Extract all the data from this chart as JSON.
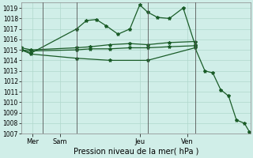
{
  "xlabel": "Pression niveau de la mer( hPa )",
  "ylim": [
    1007,
    1019.5
  ],
  "xlim": [
    0,
    11.6
  ],
  "bg_color": "#d0eee8",
  "grid_color": "#b0d8cc",
  "line_color": "#1a5c28",
  "yticks": [
    1007,
    1008,
    1009,
    1010,
    1011,
    1012,
    1013,
    1014,
    1015,
    1016,
    1017,
    1018,
    1019
  ],
  "vlines": [
    1.1,
    2.8,
    6.4,
    8.8
  ],
  "xtick_pos": [
    0.55,
    1.95,
    6.0,
    8.4
  ],
  "xtick_labels": [
    "Mer",
    "Sam",
    "Jeu",
    "Ven"
  ],
  "series1_x": [
    0.0,
    0.5,
    2.8,
    3.3,
    3.8,
    4.3,
    4.9,
    5.5,
    6.0,
    6.4,
    6.9,
    7.5,
    8.2,
    8.8
  ],
  "series1_y": [
    1015.0,
    1014.7,
    1017.0,
    1017.8,
    1017.9,
    1017.3,
    1016.5,
    1017.0,
    1019.3,
    1018.6,
    1018.1,
    1018.0,
    1019.0,
    1015.5
  ],
  "series2_x": [
    0.0,
    0.5,
    2.8,
    3.5,
    4.5,
    5.5,
    6.4,
    7.5,
    8.8
  ],
  "series2_y": [
    1015.2,
    1015.0,
    1015.2,
    1015.3,
    1015.5,
    1015.6,
    1015.5,
    1015.7,
    1015.8
  ],
  "series3_x": [
    0.0,
    0.5,
    2.8,
    3.5,
    4.5,
    5.5,
    6.4,
    7.5,
    8.8
  ],
  "series3_y": [
    1015.0,
    1014.9,
    1015.0,
    1015.1,
    1015.1,
    1015.2,
    1015.2,
    1015.3,
    1015.4
  ],
  "series4_x": [
    0.0,
    0.5,
    2.8,
    4.5,
    6.4,
    8.8,
    9.3,
    9.7,
    10.1,
    10.5,
    10.9,
    11.3,
    11.55
  ],
  "series4_y": [
    1015.0,
    1014.6,
    1014.2,
    1014.0,
    1014.0,
    1015.2,
    1013.0,
    1012.8,
    1011.2,
    1010.6,
    1008.3,
    1008.0,
    1007.2
  ]
}
